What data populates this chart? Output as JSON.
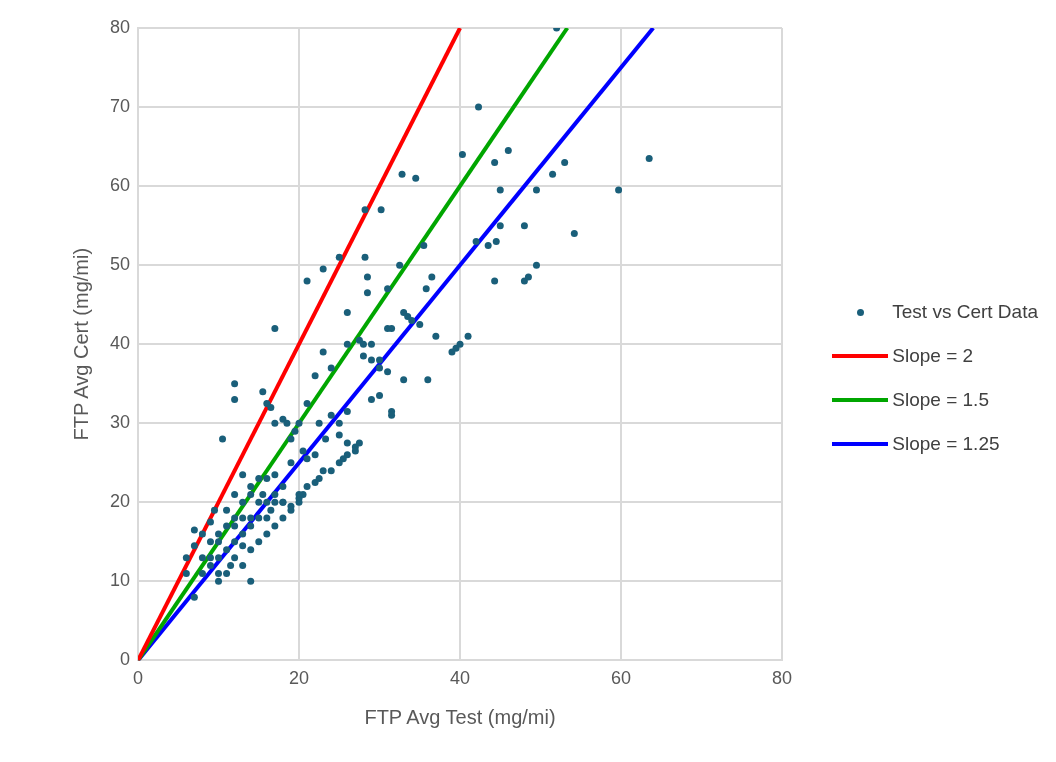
{
  "chart_data": {
    "type": "scatter",
    "xlabel": "FTP Avg Test (mg/mi)",
    "ylabel": "FTP Avg Cert (mg/mi)",
    "xlim": [
      0,
      80
    ],
    "ylim": [
      0,
      80
    ],
    "xticks": [
      0,
      20,
      40,
      60,
      80
    ],
    "yticks": [
      0,
      10,
      20,
      30,
      40,
      50,
      60,
      70,
      80
    ],
    "grid": true,
    "legend": "right",
    "series": [
      {
        "name": "Test vs Cert Data",
        "marker": "circle",
        "color": "#1a5f7a",
        "x": [
          52,
          42.3,
          46,
          40.3,
          44.3,
          53,
          63.5,
          59.7,
          32.8,
          34.5,
          45,
          49.5,
          51.5,
          28.2,
          30.2,
          42,
          43.5,
          44.5,
          35.5,
          45,
          48,
          54.2,
          25,
          28.2,
          28.5,
          21,
          23,
          44.3,
          48,
          48.5,
          49.5,
          32.5,
          31,
          28.5,
          36.5,
          35.8,
          26,
          33,
          33.5,
          34,
          35,
          31.5,
          31,
          37,
          41,
          40,
          39.5,
          39,
          17,
          27.5,
          28,
          26,
          29,
          23,
          28,
          29,
          30,
          30,
          31,
          33,
          36,
          12,
          15.5,
          10.5,
          12,
          22,
          24,
          21,
          26,
          31.5,
          31.5,
          30,
          29,
          16,
          16.5,
          17,
          18,
          18.5,
          20,
          19.5,
          19,
          22.5,
          23.3,
          24,
          25,
          25,
          26,
          27,
          27.5,
          20.5,
          22,
          21,
          13,
          14,
          14,
          15,
          16,
          17,
          18,
          19,
          20,
          20,
          20.5,
          21,
          22,
          22.5,
          23,
          24,
          25,
          25.5,
          26,
          27,
          12,
          12,
          13,
          11,
          10,
          9,
          8,
          7,
          6,
          7,
          8,
          9,
          10,
          10,
          11,
          11.5,
          12,
          13,
          14,
          14,
          13,
          15,
          16,
          17,
          18,
          19,
          15,
          16,
          17,
          18,
          14,
          15,
          9,
          10,
          11,
          12,
          13,
          8,
          7,
          6,
          9,
          10,
          12,
          13,
          11,
          9.5,
          15.5,
          16.5,
          20,
          19,
          18,
          17,
          16,
          14
        ],
        "values": [
          80,
          70,
          64.5,
          64,
          63,
          63,
          63.5,
          59.5,
          61.5,
          61,
          59.5,
          59.5,
          61.5,
          57,
          57,
          53,
          52.5,
          53,
          52.5,
          55,
          55,
          54,
          51,
          51,
          48.5,
          48,
          49.5,
          48,
          48,
          48.5,
          50,
          50,
          47,
          46.5,
          48.5,
          47,
          44,
          44,
          43.5,
          43,
          42.5,
          42,
          42,
          41,
          41,
          40,
          39.5,
          39,
          42,
          40.5,
          40,
          40,
          40,
          39,
          38.5,
          38,
          38,
          37,
          36.5,
          35.5,
          35.5,
          35,
          34,
          28,
          33,
          36,
          37,
          32.5,
          31.5,
          31.5,
          31,
          33.5,
          33,
          32.5,
          32,
          30,
          30.5,
          30,
          30,
          29,
          28,
          30,
          28,
          31,
          30,
          28.5,
          27.5,
          27,
          27.5,
          26.5,
          26,
          25.5,
          23.5,
          22,
          21,
          23,
          23,
          23.5,
          20,
          19.5,
          20,
          20.5,
          21,
          22,
          22.5,
          23,
          24,
          24,
          25,
          25.5,
          26,
          26.5,
          21,
          17,
          18,
          17,
          16,
          17.5,
          16,
          16.5,
          13,
          14.5,
          13,
          12,
          11,
          10,
          11,
          12,
          13,
          12,
          14,
          10,
          14.5,
          15,
          16,
          17,
          18,
          19,
          18,
          18,
          20,
          20,
          17,
          20,
          15,
          15,
          14,
          15,
          16,
          11,
          8,
          11,
          13,
          13,
          18,
          20,
          19,
          19,
          21,
          19,
          21,
          25,
          22,
          21,
          20,
          18
        ]
      },
      {
        "name": "Slope = 2",
        "type": "line",
        "marker": "none",
        "color": "#ff0000",
        "x": [
          0,
          40
        ],
        "values": [
          0,
          80
        ]
      },
      {
        "name": "Slope = 1.5",
        "type": "line",
        "marker": "none",
        "color": "#00a600",
        "x": [
          0,
          53.33
        ],
        "values": [
          0,
          80
        ]
      },
      {
        "name": "Slope = 1.25",
        "type": "line",
        "marker": "none",
        "color": "#0000ff",
        "x": [
          0,
          64
        ],
        "values": [
          0,
          80
        ]
      }
    ]
  }
}
